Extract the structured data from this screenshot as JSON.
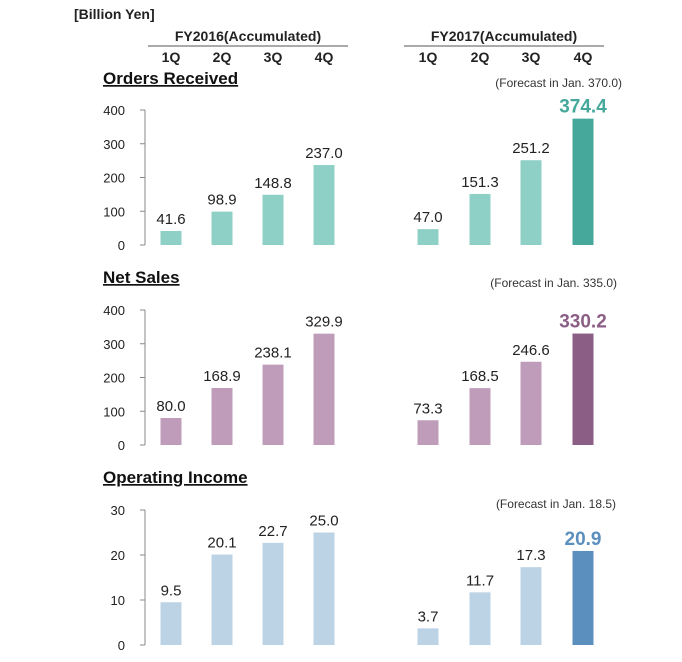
{
  "unit_label": "[Billion Yen]",
  "fiscal_years": [
    {
      "label": "FY2016(Accumulated)",
      "quarters": [
        "1Q",
        "2Q",
        "3Q",
        "4Q"
      ]
    },
    {
      "label": "FY2017(Accumulated)",
      "quarters": [
        "1Q",
        "2Q",
        "3Q",
        "4Q"
      ]
    }
  ],
  "chart_data": [
    {
      "type": "bar",
      "title": "Orders Received",
      "forecast_note": "(Forecast in Jan. 370.0)",
      "categories": [
        "FY2016 1Q",
        "FY2016 2Q",
        "FY2016 3Q",
        "FY2016 4Q",
        "FY2017 1Q",
        "FY2017 2Q",
        "FY2017 3Q",
        "FY2017 4Q"
      ],
      "values": [
        41.6,
        98.9,
        148.8,
        237.0,
        47.0,
        151.3,
        251.2,
        374.4
      ],
      "value_labels": [
        "41.6",
        "98.9",
        "148.8",
        "237.0",
        "47.0",
        "151.3",
        "251.2",
        "374.4"
      ],
      "ylim": [
        0,
        400
      ],
      "yticks": [
        "0",
        "100",
        "200",
        "300",
        "400"
      ],
      "ytick_values": [
        0,
        100,
        200,
        300,
        400
      ],
      "bar_color": "#8fd0c6",
      "highlight_color": "#45a89b",
      "highlight_label_color": "#45a89b",
      "grid": false
    },
    {
      "type": "bar",
      "title": "Net Sales",
      "forecast_note": "(Forecast in Jan. 335.0)",
      "categories": [
        "FY2016 1Q",
        "FY2016 2Q",
        "FY2016 3Q",
        "FY2016 4Q",
        "FY2017 1Q",
        "FY2017 2Q",
        "FY2017 3Q",
        "FY2017 4Q"
      ],
      "values": [
        80.0,
        168.9,
        238.1,
        329.9,
        73.3,
        168.5,
        246.6,
        330.2
      ],
      "value_labels": [
        "80.0",
        "168.9",
        "238.1",
        "329.9",
        "73.3",
        "168.5",
        "246.6",
        "330.2"
      ],
      "ylim": [
        0,
        400
      ],
      "yticks": [
        "0",
        "100",
        "200",
        "300",
        "400"
      ],
      "ytick_values": [
        0,
        100,
        200,
        300,
        400
      ],
      "bar_color": "#bf9cba",
      "highlight_color": "#8b5e86",
      "highlight_label_color": "#8b5e86",
      "grid": false
    },
    {
      "type": "bar",
      "title": "Operating Income",
      "forecast_note": "(Forecast in Jan. 18.5)",
      "categories": [
        "FY2016 1Q",
        "FY2016 2Q",
        "FY2016 3Q",
        "FY2016 4Q",
        "FY2017 1Q",
        "FY2017 2Q",
        "FY2017 3Q",
        "FY2017 4Q"
      ],
      "values": [
        9.5,
        20.1,
        22.7,
        25.0,
        3.7,
        11.7,
        17.3,
        20.9
      ],
      "value_labels": [
        "9.5",
        "20.1",
        "22.7",
        "25.0",
        "3.7",
        "11.7",
        "17.3",
        "20.9"
      ],
      "ylim": [
        0,
        30
      ],
      "yticks": [
        "0",
        "10",
        "20",
        "30"
      ],
      "ytick_values": [
        0,
        10,
        20,
        30
      ],
      "bar_color": "#bcd3e6",
      "highlight_color": "#5b8fbe",
      "highlight_label_color": "#5b8fbe",
      "grid": false
    }
  ]
}
